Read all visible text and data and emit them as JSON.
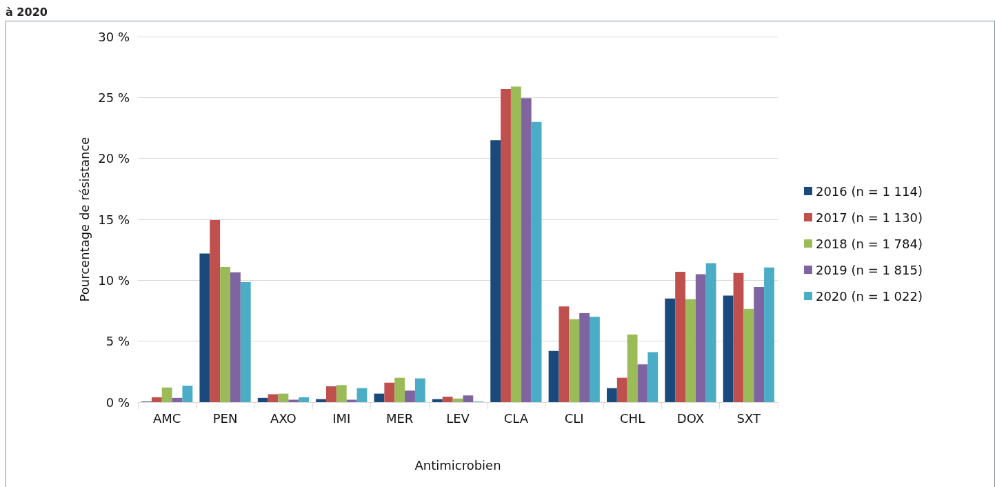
{
  "chart_data": {
    "type": "bar",
    "title": "à 2020",
    "xlabel": "Antimicrobien",
    "ylabel": "Pourcentage de résistance",
    "categories": [
      "AMC",
      "PEN",
      "AXO",
      "IMI",
      "MER",
      "LEV",
      "CLA",
      "CLI",
      "CHL",
      "DOX",
      "SXT"
    ],
    "series": [
      {
        "name": "2016 (n = 1 114)",
        "color": "#1a4a7c",
        "values": [
          0.05,
          12.2,
          0.35,
          0.25,
          0.7,
          0.25,
          21.5,
          4.2,
          1.15,
          8.5,
          8.75
        ]
      },
      {
        "name": "2017 (n = 1 130)",
        "color": "#c0504d",
        "values": [
          0.4,
          14.95,
          0.65,
          1.3,
          1.6,
          0.45,
          25.7,
          7.85,
          2.0,
          10.7,
          10.6
        ]
      },
      {
        "name": "2018 (n = 1 784)",
        "color": "#9bbb59",
        "values": [
          1.2,
          11.1,
          0.7,
          1.4,
          2.0,
          0.3,
          25.9,
          6.8,
          5.55,
          8.45,
          7.65
        ]
      },
      {
        "name": "2019 (n = 1 815)",
        "color": "#8064a2",
        "values": [
          0.35,
          10.65,
          0.2,
          0.2,
          0.95,
          0.55,
          24.95,
          7.3,
          3.1,
          10.5,
          9.45
        ]
      },
      {
        "name": "2020 (n = 1 022)",
        "color": "#4bacc6",
        "values": [
          1.35,
          9.85,
          0.4,
          1.15,
          1.95,
          0.05,
          23.0,
          7.0,
          4.1,
          11.4,
          11.05
        ]
      }
    ],
    "ylim": [
      0,
      30
    ],
    "yticks": [
      {
        "value": 0,
        "label": "0 %"
      },
      {
        "value": 5,
        "label": "5 %"
      },
      {
        "value": 10,
        "label": "10 %"
      },
      {
        "value": 15,
        "label": "15 %"
      },
      {
        "value": 20,
        "label": "20 %"
      },
      {
        "value": 25,
        "label": "25 %"
      },
      {
        "value": 30,
        "label": "30 %"
      }
    ],
    "grid": "y",
    "legend": "right"
  }
}
